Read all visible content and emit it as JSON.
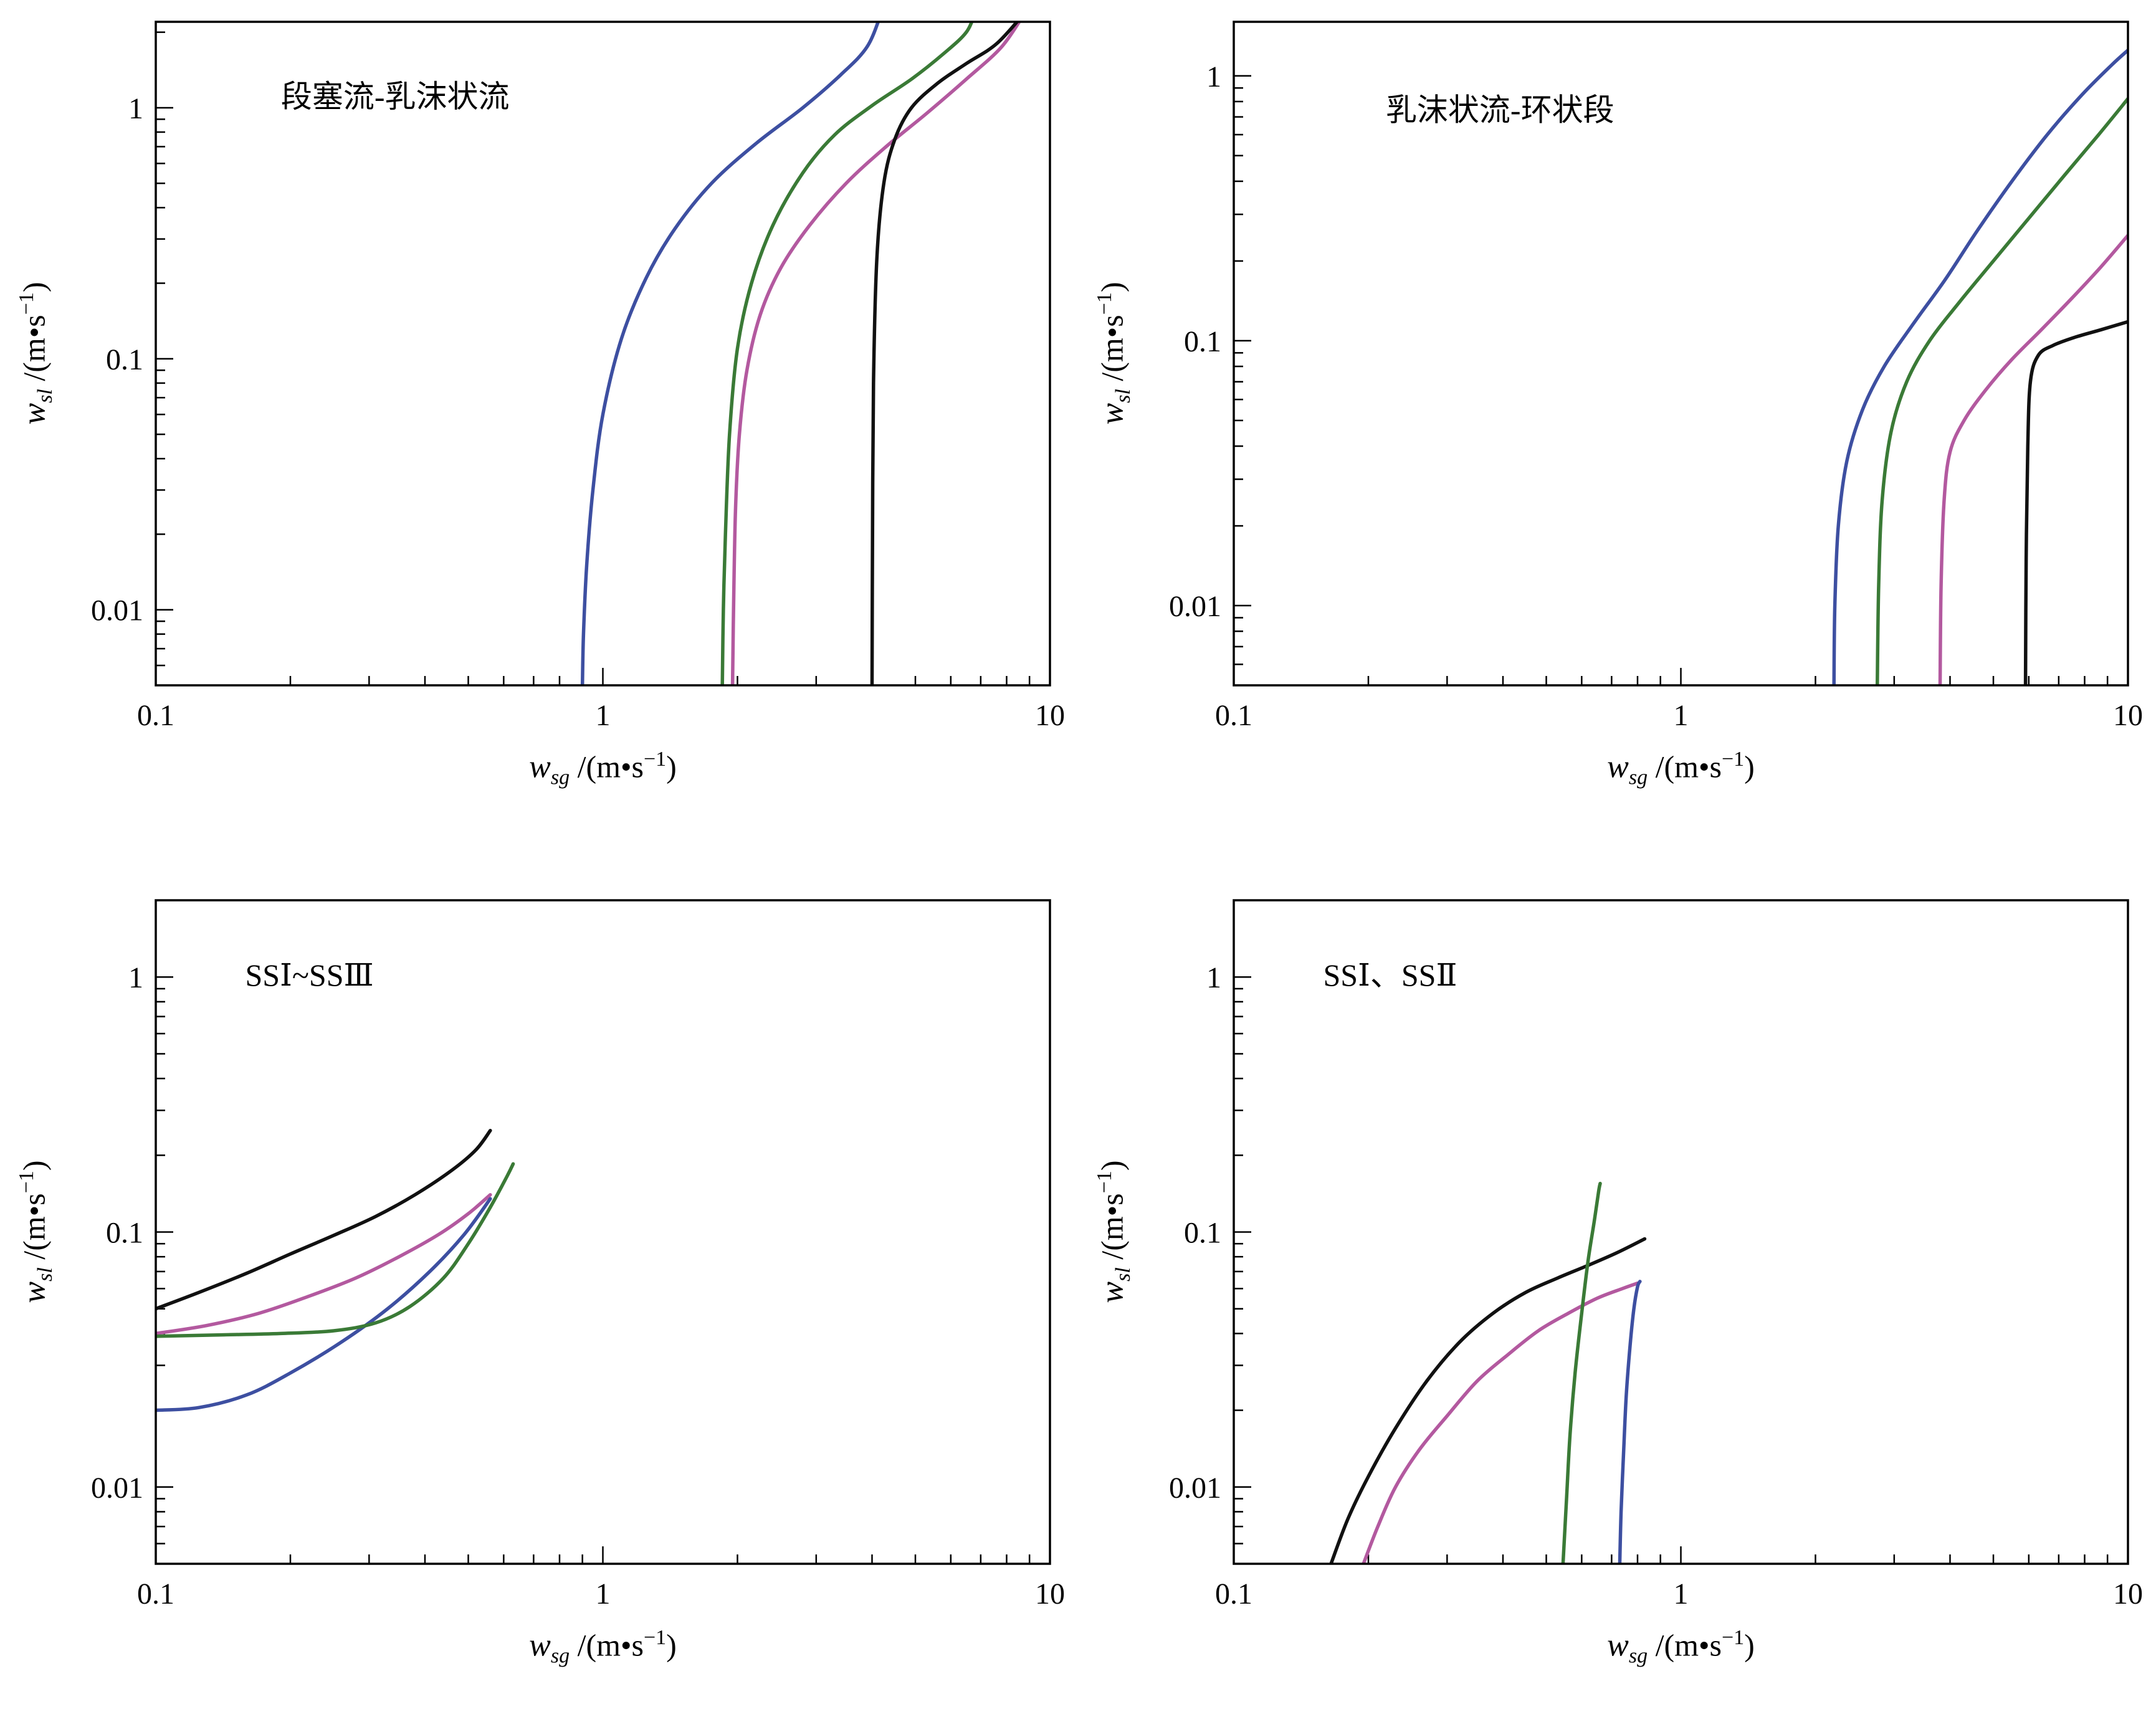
{
  "page": {
    "background": "#ffffff"
  },
  "axis_labels": {
    "var": "w",
    "x_sub": "sg",
    "y_sub": "sl",
    "unit_prefix": " /(m•s",
    "exponent": "−1",
    "unit_suffix": ")"
  },
  "chart_data": [
    {
      "type": "line",
      "title": "段塞流-乳沫状流",
      "xlabel": "wsg /(m•s−1)",
      "ylabel": "wsl /(m•s−1)",
      "xlim": [
        0.1,
        10
      ],
      "ylim": [
        0.005,
        2.2
      ],
      "x_ticks": [
        "0.1",
        "1",
        "10"
      ],
      "y_ticks": [
        "0.01",
        "0.1",
        "1"
      ],
      "grid": false,
      "legend": "none",
      "title_pos": [
        0.14,
        0.08
      ],
      "series": [
        {
          "name": "curve-blue",
          "color": "#3d4fa1",
          "points": [
            [
              0.9,
              0.005
            ],
            [
              0.905,
              0.008
            ],
            [
              0.92,
              0.015
            ],
            [
              0.95,
              0.03
            ],
            [
              1.0,
              0.06
            ],
            [
              1.1,
              0.12
            ],
            [
              1.25,
              0.21
            ],
            [
              1.45,
              0.33
            ],
            [
              1.75,
              0.5
            ],
            [
              2.2,
              0.72
            ],
            [
              2.8,
              1.0
            ],
            [
              3.4,
              1.35
            ],
            [
              3.9,
              1.75
            ],
            [
              4.2,
              2.4
            ]
          ]
        },
        {
          "name": "curve-green",
          "color": "#3a7a36",
          "points": [
            [
              1.85,
              0.005
            ],
            [
              1.86,
              0.01
            ],
            [
              1.88,
              0.02
            ],
            [
              1.92,
              0.05
            ],
            [
              2.0,
              0.11
            ],
            [
              2.15,
              0.2
            ],
            [
              2.4,
              0.34
            ],
            [
              2.8,
              0.55
            ],
            [
              3.3,
              0.78
            ],
            [
              4.0,
              1.02
            ],
            [
              4.9,
              1.3
            ],
            [
              5.8,
              1.65
            ],
            [
              6.5,
              2.0
            ],
            [
              6.8,
              2.4
            ]
          ]
        },
        {
          "name": "curve-magenta",
          "color": "#b3599f",
          "points": [
            [
              1.95,
              0.005
            ],
            [
              1.96,
              0.01
            ],
            [
              1.98,
              0.025
            ],
            [
              2.02,
              0.05
            ],
            [
              2.1,
              0.09
            ],
            [
              2.25,
              0.15
            ],
            [
              2.5,
              0.23
            ],
            [
              2.9,
              0.34
            ],
            [
              3.5,
              0.5
            ],
            [
              4.3,
              0.7
            ],
            [
              5.3,
              0.95
            ],
            [
              6.5,
              1.3
            ],
            [
              7.8,
              1.75
            ],
            [
              8.8,
              2.4
            ]
          ]
        },
        {
          "name": "curve-black",
          "color": "#111111",
          "points": [
            [
              4.0,
              0.005
            ],
            [
              4.01,
              0.02
            ],
            [
              4.03,
              0.08
            ],
            [
              4.1,
              0.25
            ],
            [
              4.25,
              0.5
            ],
            [
              4.5,
              0.75
            ],
            [
              4.9,
              1.0
            ],
            [
              5.6,
              1.25
            ],
            [
              6.5,
              1.5
            ],
            [
              7.6,
              1.8
            ],
            [
              8.8,
              2.4
            ]
          ]
        }
      ]
    },
    {
      "type": "line",
      "title": "乳沫状流-环状段",
      "xlabel": "wsg /(m•s−1)",
      "ylabel": "wsl /(m•s−1)",
      "xlim": [
        0.1,
        10
      ],
      "ylim": [
        0.005,
        1.6
      ],
      "x_ticks": [
        "0.1",
        "1",
        "10"
      ],
      "y_ticks": [
        "0.01",
        "0.1",
        "1"
      ],
      "grid": false,
      "legend": "none",
      "title_pos": [
        0.17,
        0.1
      ],
      "series": [
        {
          "name": "curve-blue",
          "color": "#3d4fa1",
          "points": [
            [
              2.2,
              0.005
            ],
            [
              2.21,
              0.01
            ],
            [
              2.25,
              0.02
            ],
            [
              2.35,
              0.035
            ],
            [
              2.55,
              0.055
            ],
            [
              2.85,
              0.08
            ],
            [
              3.3,
              0.115
            ],
            [
              3.9,
              0.17
            ],
            [
              4.6,
              0.26
            ],
            [
              5.5,
              0.4
            ],
            [
              6.6,
              0.6
            ],
            [
              7.9,
              0.85
            ],
            [
              9.2,
              1.1
            ],
            [
              10,
              1.25
            ]
          ]
        },
        {
          "name": "curve-green",
          "color": "#3a7a36",
          "points": [
            [
              2.75,
              0.005
            ],
            [
              2.77,
              0.012
            ],
            [
              2.82,
              0.025
            ],
            [
              2.95,
              0.045
            ],
            [
              3.2,
              0.07
            ],
            [
              3.6,
              0.1
            ],
            [
              4.2,
              0.14
            ],
            [
              5.0,
              0.2
            ],
            [
              6.0,
              0.29
            ],
            [
              7.2,
              0.42
            ],
            [
              8.6,
              0.6
            ],
            [
              10,
              0.82
            ]
          ]
        },
        {
          "name": "curve-magenta",
          "color": "#b3599f",
          "points": [
            [
              3.8,
              0.005
            ],
            [
              3.82,
              0.012
            ],
            [
              3.88,
              0.025
            ],
            [
              4.0,
              0.038
            ],
            [
              4.3,
              0.05
            ],
            [
              4.8,
              0.065
            ],
            [
              5.5,
              0.085
            ],
            [
              6.4,
              0.11
            ],
            [
              7.5,
              0.145
            ],
            [
              8.7,
              0.19
            ],
            [
              10,
              0.25
            ]
          ]
        },
        {
          "name": "curve-black",
          "color": "#111111",
          "points": [
            [
              5.9,
              0.005
            ],
            [
              5.92,
              0.015
            ],
            [
              5.97,
              0.04
            ],
            [
              6.05,
              0.07
            ],
            [
              6.3,
              0.088
            ],
            [
              6.8,
              0.096
            ],
            [
              7.6,
              0.103
            ],
            [
              8.7,
              0.11
            ],
            [
              10,
              0.118
            ]
          ]
        }
      ]
    },
    {
      "type": "line",
      "title": "SSⅠ~SSⅢ",
      "xlabel": "wsg /(m•s−1)",
      "ylabel": "wsl /(m•s−1)",
      "xlim": [
        0.1,
        10
      ],
      "ylim": [
        0.005,
        2.0
      ],
      "x_ticks": [
        "0.1",
        "1",
        "10"
      ],
      "y_ticks": [
        "0.01",
        "0.1",
        "1"
      ],
      "grid": false,
      "legend": "none",
      "title_pos": [
        0.1,
        0.08
      ],
      "series": [
        {
          "name": "curve-black",
          "color": "#111111",
          "points": [
            [
              0.1,
              0.05
            ],
            [
              0.125,
              0.058
            ],
            [
              0.16,
              0.069
            ],
            [
              0.2,
              0.082
            ],
            [
              0.25,
              0.097
            ],
            [
              0.31,
              0.115
            ],
            [
              0.38,
              0.14
            ],
            [
              0.46,
              0.175
            ],
            [
              0.52,
              0.21
            ],
            [
              0.56,
              0.25
            ]
          ]
        },
        {
          "name": "curve-magenta",
          "color": "#b3599f",
          "points": [
            [
              0.1,
              0.04
            ],
            [
              0.13,
              0.043
            ],
            [
              0.17,
              0.048
            ],
            [
              0.22,
              0.056
            ],
            [
              0.28,
              0.066
            ],
            [
              0.35,
              0.08
            ],
            [
              0.43,
              0.098
            ],
            [
              0.5,
              0.118
            ],
            [
              0.56,
              0.14
            ]
          ]
        },
        {
          "name": "curve-blue",
          "color": "#3d4fa1",
          "points": [
            [
              0.1,
              0.02
            ],
            [
              0.125,
              0.0205
            ],
            [
              0.16,
              0.023
            ],
            [
              0.2,
              0.028
            ],
            [
              0.26,
              0.037
            ],
            [
              0.33,
              0.05
            ],
            [
              0.41,
              0.07
            ],
            [
              0.49,
              0.098
            ],
            [
              0.56,
              0.135
            ]
          ]
        },
        {
          "name": "curve-green",
          "color": "#3a7a36",
          "points": [
            [
              0.1,
              0.039
            ],
            [
              0.14,
              0.0395
            ],
            [
              0.19,
              0.04
            ],
            [
              0.25,
              0.041
            ],
            [
              0.31,
              0.044
            ],
            [
              0.37,
              0.051
            ],
            [
              0.44,
              0.066
            ],
            [
              0.5,
              0.09
            ],
            [
              0.56,
              0.125
            ],
            [
              0.61,
              0.165
            ],
            [
              0.63,
              0.185
            ]
          ]
        }
      ]
    },
    {
      "type": "line",
      "title": "SSⅠ、SSⅡ",
      "xlabel": "wsg /(m•s−1)",
      "ylabel": "wsl /(m•s−1)",
      "xlim": [
        0.1,
        10
      ],
      "ylim": [
        0.005,
        2.0
      ],
      "x_ticks": [
        "0.1",
        "1",
        "10"
      ],
      "y_ticks": [
        "0.01",
        "0.1",
        "1"
      ],
      "grid": false,
      "legend": "none",
      "title_pos": [
        0.1,
        0.08
      ],
      "series": [
        {
          "name": "curve-black",
          "color": "#111111",
          "points": [
            [
              0.165,
              0.005
            ],
            [
              0.18,
              0.0075
            ],
            [
              0.2,
              0.011
            ],
            [
              0.23,
              0.017
            ],
            [
              0.27,
              0.026
            ],
            [
              0.32,
              0.037
            ],
            [
              0.38,
              0.048
            ],
            [
              0.45,
              0.058
            ],
            [
              0.53,
              0.066
            ],
            [
              0.62,
              0.074
            ],
            [
              0.72,
              0.083
            ],
            [
              0.83,
              0.094
            ]
          ]
        },
        {
          "name": "curve-magenta",
          "color": "#b3599f",
          "points": [
            [
              0.195,
              0.005
            ],
            [
              0.21,
              0.007
            ],
            [
              0.23,
              0.01
            ],
            [
              0.26,
              0.014
            ],
            [
              0.3,
              0.019
            ],
            [
              0.35,
              0.026
            ],
            [
              0.41,
              0.033
            ],
            [
              0.48,
              0.041
            ],
            [
              0.56,
              0.048
            ],
            [
              0.65,
              0.055
            ],
            [
              0.74,
              0.06
            ],
            [
              0.8,
              0.063
            ]
          ]
        },
        {
          "name": "curve-green",
          "color": "#3a7a36",
          "points": [
            [
              0.545,
              0.005
            ],
            [
              0.555,
              0.009
            ],
            [
              0.565,
              0.016
            ],
            [
              0.58,
              0.028
            ],
            [
              0.6,
              0.048
            ],
            [
              0.62,
              0.077
            ],
            [
              0.64,
              0.11
            ],
            [
              0.655,
              0.145
            ],
            [
              0.66,
              0.155
            ]
          ]
        },
        {
          "name": "curve-blue",
          "color": "#3d4fa1",
          "points": [
            [
              0.73,
              0.005
            ],
            [
              0.735,
              0.008
            ],
            [
              0.745,
              0.014
            ],
            [
              0.755,
              0.023
            ],
            [
              0.77,
              0.036
            ],
            [
              0.785,
              0.05
            ],
            [
              0.8,
              0.061
            ],
            [
              0.81,
              0.064
            ]
          ]
        }
      ]
    }
  ]
}
